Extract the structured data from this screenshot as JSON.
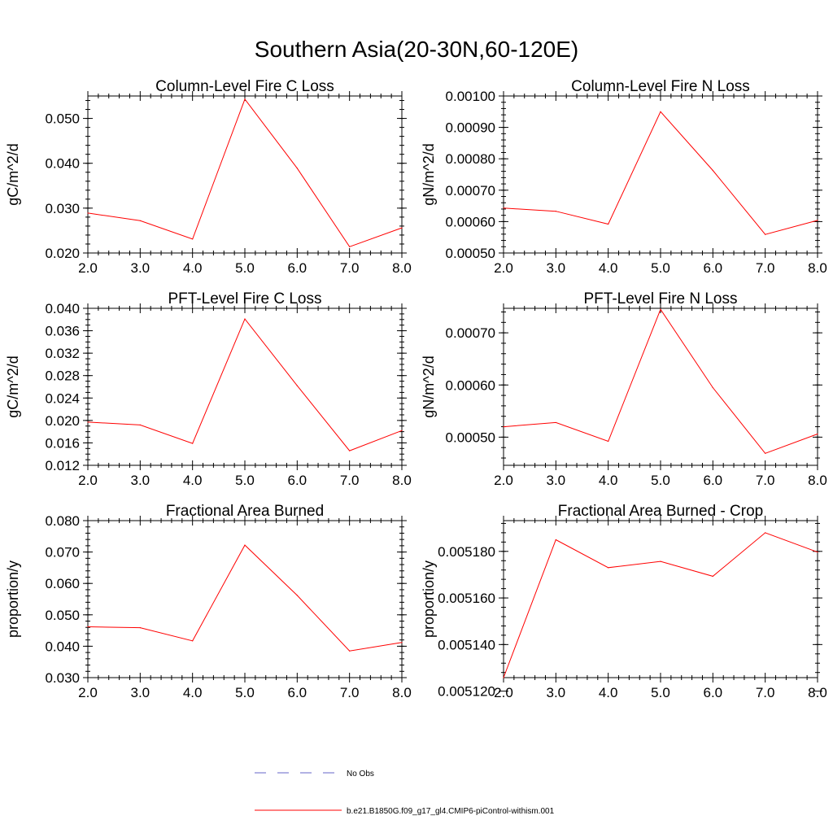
{
  "figure_title": "Southern Asia(20-30N,60-120E)",
  "legend": [
    {
      "label": "No Obs",
      "color": "#6464c8",
      "style": "dashed"
    },
    {
      "label": "b.e21.B1850G.f09_g17_gl4.CMIP6-piControl-withism.001",
      "color": "#ff0000",
      "style": "solid"
    }
  ],
  "chart_data": [
    {
      "type": "line",
      "title": "Column-Level Fire C Loss",
      "xlabel": "",
      "ylabel": "gC/m^2/d",
      "x": [
        2.0,
        3.0,
        4.0,
        5.0,
        6.0,
        7.0,
        8.0
      ],
      "xlim": [
        2.0,
        8.0
      ],
      "xticks": [
        "2.0",
        "3.0",
        "4.0",
        "5.0",
        "6.0",
        "7.0",
        "8.0"
      ],
      "ylim": [
        0.02,
        0.055
      ],
      "yticks": [
        0.02,
        0.03,
        0.04,
        0.05
      ],
      "ytick_labels": [
        "0.020",
        "0.030",
        "0.040",
        "0.050"
      ],
      "yminor_step": 0.002,
      "series": [
        {
          "name": "b.e21.B1850G.f09_g17_gl4.CMIP6-piControl-withism.001",
          "color": "#ff0000",
          "values": [
            0.0289,
            0.0272,
            0.0231,
            0.0543,
            0.0389,
            0.0214,
            0.0256
          ]
        }
      ]
    },
    {
      "type": "line",
      "title": "Column-Level Fire N Loss",
      "xlabel": "",
      "ylabel": "gN/m^2/d",
      "x": [
        2.0,
        3.0,
        4.0,
        5.0,
        6.0,
        7.0,
        8.0
      ],
      "xlim": [
        2.0,
        8.0
      ],
      "xticks": [
        "2.0",
        "3.0",
        "4.0",
        "5.0",
        "6.0",
        "7.0",
        "8.0"
      ],
      "ylim": [
        0.0005,
        0.001
      ],
      "yticks": [
        0.0005,
        0.0006,
        0.0007,
        0.0008,
        0.0009,
        0.001
      ],
      "ytick_labels": [
        "0.00050",
        "0.00060",
        "0.00070",
        "0.00080",
        "0.00090",
        "0.00100"
      ],
      "yminor_step": 2e-05,
      "series": [
        {
          "name": "b.e21.B1850G.f09_g17_gl4.CMIP6-piControl-withism.001",
          "color": "#ff0000",
          "values": [
            0.000643,
            0.000633,
            0.000592,
            0.00095,
            0.000763,
            0.000559,
            0.000604
          ]
        }
      ]
    },
    {
      "type": "line",
      "title": "PFT-Level Fire C Loss",
      "xlabel": "",
      "ylabel": "gC/m^2/d",
      "x": [
        2.0,
        3.0,
        4.0,
        5.0,
        6.0,
        7.0,
        8.0
      ],
      "xlim": [
        2.0,
        8.0
      ],
      "xticks": [
        "2.0",
        "3.0",
        "4.0",
        "5.0",
        "6.0",
        "7.0",
        "8.0"
      ],
      "ylim": [
        0.012,
        0.04
      ],
      "yticks": [
        0.012,
        0.016,
        0.02,
        0.024,
        0.028,
        0.032,
        0.036,
        0.04
      ],
      "ytick_labels": [
        "0.012",
        "0.016",
        "0.020",
        "0.024",
        "0.028",
        "0.032",
        "0.036",
        "0.040"
      ],
      "yminor_step": 0.001,
      "series": [
        {
          "name": "b.e21.B1850G.f09_g17_gl4.CMIP6-piControl-withism.001",
          "color": "#ff0000",
          "values": [
            0.0197,
            0.0192,
            0.0159,
            0.0381,
            0.0262,
            0.0146,
            0.0182
          ]
        }
      ]
    },
    {
      "type": "line",
      "title": "PFT-Level Fire N Loss",
      "xlabel": "",
      "ylabel": "gN/m^2/d",
      "x": [
        2.0,
        3.0,
        4.0,
        5.0,
        6.0,
        7.0,
        8.0
      ],
      "xlim": [
        2.0,
        8.0
      ],
      "xticks": [
        "2.0",
        "3.0",
        "4.0",
        "5.0",
        "6.0",
        "7.0",
        "8.0"
      ],
      "ylim": [
        0.000446,
        0.000747
      ],
      "yticks": [
        0.0005,
        0.0006,
        0.0007
      ],
      "ytick_labels": [
        "0.00050",
        "0.00060",
        "0.00070"
      ],
      "yminor_step": 2e-05,
      "series": [
        {
          "name": "b.e21.B1850G.f09_g17_gl4.CMIP6-piControl-withism.001",
          "color": "#ff0000",
          "values": [
            0.00052,
            0.000528,
            0.000492,
            0.000745,
            0.000595,
            0.000469,
            0.000506
          ]
        }
      ]
    },
    {
      "type": "line",
      "title": "Fractional Area Burned",
      "xlabel": "",
      "ylabel": "proportion/y",
      "x": [
        2.0,
        3.0,
        4.0,
        5.0,
        6.0,
        7.0,
        8.0
      ],
      "xlim": [
        2.0,
        8.0
      ],
      "xticks": [
        "2.0",
        "3.0",
        "4.0",
        "5.0",
        "6.0",
        "7.0",
        "8.0"
      ],
      "ylim": [
        0.03,
        0.08
      ],
      "yticks": [
        0.03,
        0.04,
        0.05,
        0.06,
        0.07,
        0.08
      ],
      "ytick_labels": [
        "0.030",
        "0.040",
        "0.050",
        "0.060",
        "0.070",
        "0.080"
      ],
      "yminor_step": 0.002,
      "series": [
        {
          "name": "b.e21.B1850G.f09_g17_gl4.CMIP6-piControl-withism.001",
          "color": "#ff0000",
          "values": [
            0.0462,
            0.0459,
            0.0417,
            0.0722,
            0.0562,
            0.0385,
            0.0412
          ]
        }
      ]
    },
    {
      "type": "line",
      "title": "Fractional Area Burned - Crop",
      "xlabel": "",
      "ylabel": "proportion/y",
      "x": [
        2.0,
        3.0,
        4.0,
        5.0,
        6.0,
        7.0,
        8.0
      ],
      "xlim": [
        2.0,
        8.0
      ],
      "xticks": [
        "2.0",
        "3.0",
        "4.0",
        "5.0",
        "6.0",
        "7.0",
        "8.0"
      ],
      "ylim": [
        0.0051258,
        0.0051932
      ],
      "yticks": [
        0.00512,
        0.00514,
        0.00516,
        0.00518
      ],
      "ytick_labels": [
        "0.005120",
        "0.005140",
        "0.005160",
        "0.005180"
      ],
      "yminor_step": 4e-06,
      "series": [
        {
          "name": "b.e21.B1850G.f09_g17_gl4.CMIP6-piControl-withism.001",
          "color": "#ff0000",
          "values": [
            0.0051258,
            0.005185,
            0.005173,
            0.0051757,
            0.0051693,
            0.005188,
            0.0051797
          ]
        }
      ]
    }
  ]
}
